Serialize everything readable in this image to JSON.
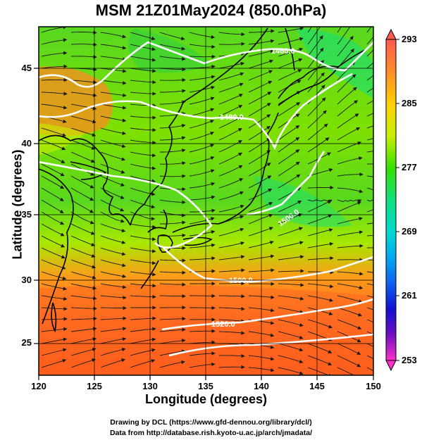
{
  "title": "MSM 21Z01May2024 (850.0hPa)",
  "xlabel": "Longitude (degrees)",
  "ylabel": "Latitude  (degrees)",
  "credits": {
    "line1": "Drawing by DCL (https://www.gfd-dennou.org/library/dcl/)",
    "line2": "Data from http://database.rish.kyoto-u.ac.jp/arch/jmadata/"
  },
  "map": {
    "lon_range": [
      120,
      150
    ],
    "lat_range": [
      22.5,
      47.5
    ],
    "lon_ticks": [
      "120",
      "125",
      "130",
      "135",
      "140",
      "145",
      "150"
    ],
    "lat_ticks": [
      "25",
      "30",
      "35",
      "40",
      "45"
    ]
  },
  "colorbar": {
    "ticks": [
      "293",
      "285",
      "277",
      "269",
      "261",
      "253"
    ],
    "colors": [
      "#ff5a50",
      "#ff8c2a",
      "#ffd000",
      "#c8ee00",
      "#36e000",
      "#10e080",
      "#00d8d0",
      "#00a8f0",
      "#1060f0",
      "#1010d0",
      "#7010c0",
      "#c010c0",
      "#ff30c8"
    ]
  },
  "contour_labels": [
    "1460.0",
    "1480.0",
    "1500.0",
    "1500.0",
    "1520.0"
  ],
  "colors": {
    "contour": "#ffffff",
    "coast": "#000000",
    "vector": "#1a1a1a"
  }
}
